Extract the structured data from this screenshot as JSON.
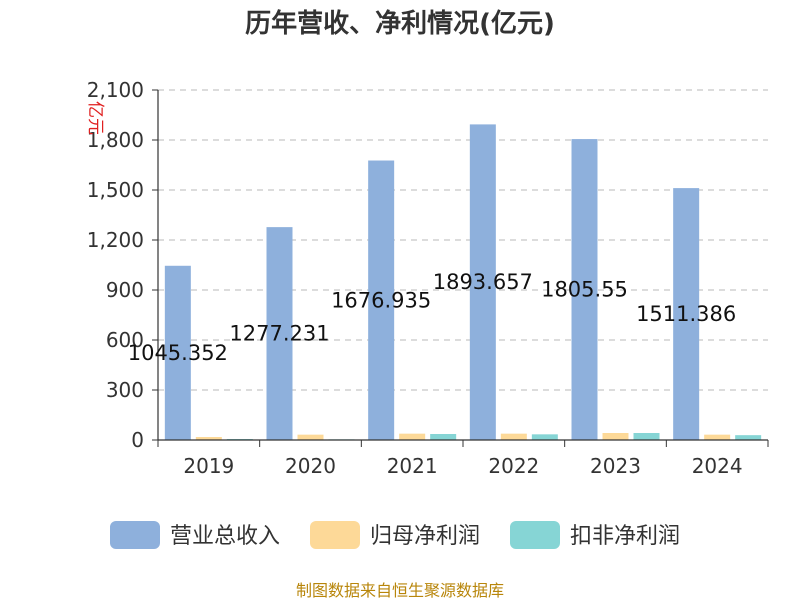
{
  "chart_data": {
    "type": "bar",
    "title": "历年营收、净利情况(亿元)",
    "ylabel": "亿元",
    "xlabel": "",
    "categories": [
      "2019",
      "2020",
      "2021",
      "2022",
      "2023",
      "2024"
    ],
    "ylim": [
      0,
      2100
    ],
    "yticks": [
      0,
      300,
      600,
      900,
      1200,
      1500,
      1800,
      2100
    ],
    "ytick_labels": [
      "0",
      "300",
      "600",
      "900",
      "1,200",
      "1,500",
      "1,800",
      "2,100"
    ],
    "grid": true,
    "legend_position": "bottom",
    "series": [
      {
        "name": "营业总收入",
        "color": "#8eb0dc",
        "values": [
          1045.352,
          1277.231,
          1676.935,
          1893.657,
          1805.55,
          1511.386
        ],
        "labels": [
          "1045.352",
          "1277.231",
          "1676.935",
          "1893.657",
          "1805.55",
          "1511.386"
        ]
      },
      {
        "name": "归母净利润",
        "color": "#fdd998",
        "values": [
          18,
          32,
          38,
          38,
          42,
          32
        ]
      },
      {
        "name": "扣非净利润",
        "color": "#86d5d5",
        "values": [
          6,
          4,
          36,
          34,
          42,
          29
        ]
      }
    ]
  },
  "source": "制图数据来自恒生聚源数据库"
}
